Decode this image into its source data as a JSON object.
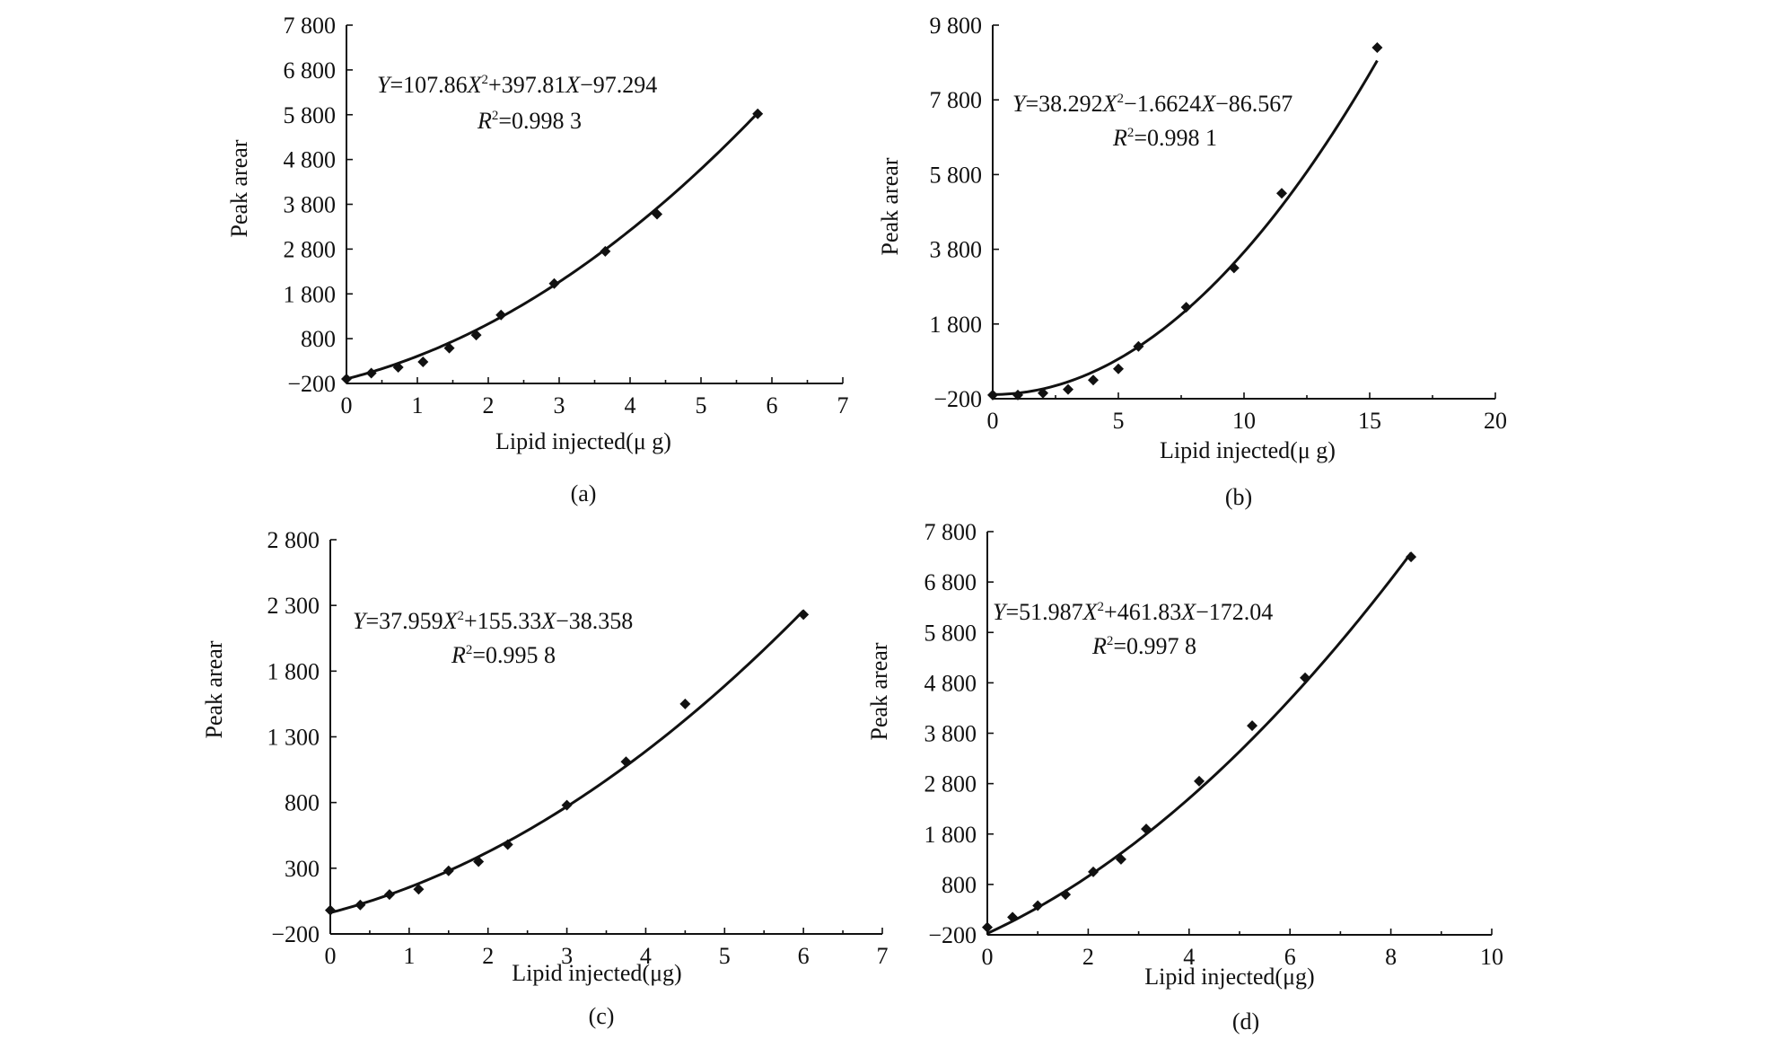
{
  "chart_data": [
    {
      "type": "scatter",
      "panel_label": "(a)",
      "xlabel": "Lipid injected(μ g)",
      "ylabel": "Peak arear",
      "xlim": [
        0,
        7
      ],
      "ylim": [
        -200,
        7800
      ],
      "x_ticks": [
        0,
        1,
        2,
        3,
        4,
        5,
        6,
        7
      ],
      "y_ticks": [
        -200,
        800,
        1800,
        2800,
        3800,
        4800,
        5800,
        6800,
        7800
      ],
      "x_tick_labels": [
        "0",
        "1",
        "2",
        "3",
        "4",
        "5",
        "6",
        "7"
      ],
      "y_tick_labels": [
        "−200",
        "800",
        "1 800",
        "2 800",
        "3 800",
        "4 800",
        "5 800",
        "6 800",
        "7 800"
      ],
      "fit": {
        "a": 107.86,
        "b": 397.81,
        "c": -97.294
      },
      "equation": {
        "lhs": "Y",
        "eq1": "=107.86",
        "X": "X",
        "sup": "2",
        "mid": "+397.81",
        "X2": "X",
        "tail": "−97.294"
      },
      "r2": {
        "R": "R",
        "sup": "2",
        "text": "=0.998 3"
      },
      "x": [
        0,
        0.35,
        0.73,
        1.08,
        1.45,
        1.83,
        2.18,
        2.93,
        3.65,
        4.38,
        5.8
      ],
      "y": [
        -100,
        30,
        160,
        280,
        590,
        880,
        1330,
        2030,
        2750,
        3580,
        5820
      ]
    },
    {
      "type": "scatter",
      "panel_label": "(b)",
      "xlabel": "Lipid injected(μ g)",
      "ylabel": "Peak arear",
      "xlim": [
        0,
        20
      ],
      "ylim": [
        -200,
        9800
      ],
      "x_ticks": [
        0,
        5,
        10,
        15,
        20
      ],
      "y_ticks": [
        -200,
        1800,
        3800,
        5800,
        7800,
        9800
      ],
      "x_tick_labels": [
        "0",
        "5",
        "10",
        "15",
        "20"
      ],
      "y_tick_labels": [
        "−200",
        "1 800",
        "3 800",
        "5 800",
        "7 800",
        "9 800"
      ],
      "fit": {
        "a": 38.292,
        "b": -1.6624,
        "c": -86.567
      },
      "equation": {
        "lhs": "Y",
        "eq1": "=38.292",
        "X": "X",
        "sup": "2",
        "mid": "−1.6624",
        "X2": "X",
        "tail": "−86.567"
      },
      "r2": {
        "R": "R",
        "sup": "2",
        "text": "=0.998 1"
      },
      "x": [
        0,
        1,
        2,
        3,
        4,
        5,
        5.8,
        7.7,
        9.6,
        11.5,
        15.3
      ],
      "y": [
        -100,
        -100,
        -50,
        50,
        300,
        600,
        1200,
        2250,
        3300,
        5300,
        9200
      ]
    },
    {
      "type": "scatter",
      "panel_label": "(c)",
      "xlabel": "Lipid injected(μg)",
      "ylabel": "Peak arear",
      "xlim": [
        0,
        7
      ],
      "ylim": [
        -200,
        2800
      ],
      "x_ticks": [
        0,
        1,
        2,
        3,
        4,
        5,
        6,
        7
      ],
      "y_ticks": [
        -200,
        300,
        800,
        1300,
        1800,
        2300,
        2800
      ],
      "x_tick_labels": [
        "0",
        "1",
        "2",
        "3",
        "4",
        "5",
        "6",
        "7"
      ],
      "y_tick_labels": [
        "−200",
        "300",
        "800",
        "1 300",
        "1 800",
        "2 300",
        "2 800"
      ],
      "fit": {
        "a": 37.959,
        "b": 155.33,
        "c": -38.358
      },
      "equation": {
        "lhs": "Y",
        "eq1": "=37.959",
        "X": "X",
        "sup": "2",
        "mid": "+155.33",
        "X2": "X",
        "tail": "−38.358"
      },
      "r2": {
        "R": "R",
        "sup": "2",
        "text": "=0.995 8"
      },
      "x": [
        0,
        0.38,
        0.75,
        1.12,
        1.5,
        1.88,
        2.25,
        3,
        3.75,
        4.5,
        6
      ],
      "y": [
        -20,
        20,
        100,
        140,
        280,
        350,
        480,
        780,
        1110,
        1550,
        2230
      ]
    },
    {
      "type": "scatter",
      "panel_label": "(d)",
      "xlabel": "Lipid injected(μg)",
      "ylabel": "Peak arear",
      "xlim": [
        0,
        10
      ],
      "ylim": [
        -200,
        7800
      ],
      "x_ticks": [
        0,
        2,
        4,
        6,
        8,
        10
      ],
      "y_ticks": [
        -200,
        800,
        1800,
        2800,
        3800,
        4800,
        5800,
        6800,
        7800
      ],
      "x_tick_labels": [
        "0",
        "2",
        "4",
        "6",
        "8",
        "10"
      ],
      "y_tick_labels": [
        "−200",
        "800",
        "1 800",
        "2 800",
        "3 800",
        "4 800",
        "5 800",
        "6 800",
        "7 800"
      ],
      "fit": {
        "a": 51.987,
        "b": 461.83,
        "c": -172.04
      },
      "equation": {
        "lhs": "Y",
        "eq1": "=51.987",
        "X": "X",
        "sup": "2",
        "mid": "+461.83",
        "X2": "X",
        "tail": "−172.04"
      },
      "r2": {
        "R": "R",
        "sup": "2",
        "text": "=0.997 8"
      },
      "x": [
        0,
        0.5,
        1,
        1.55,
        2.1,
        2.65,
        3.15,
        4.2,
        5.25,
        6.3,
        8.4
      ],
      "y": [
        -50,
        150,
        380,
        600,
        1050,
        1300,
        1900,
        2850,
        3950,
        4900,
        7300
      ]
    }
  ]
}
